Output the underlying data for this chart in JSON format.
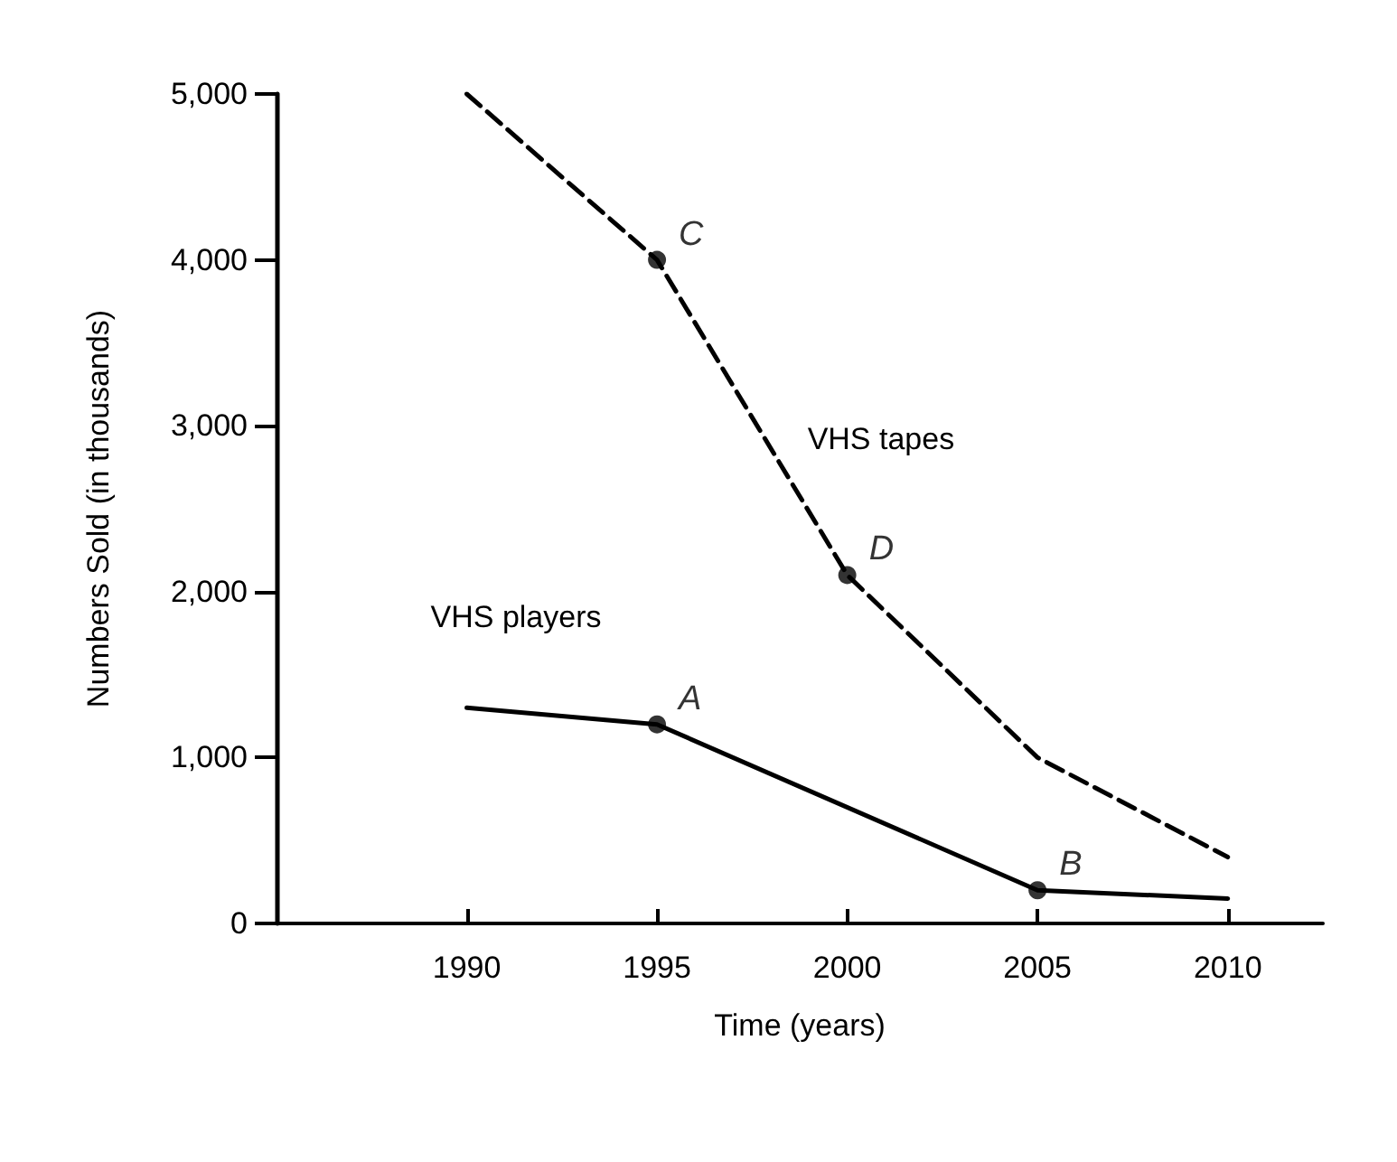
{
  "chart_data": {
    "type": "line",
    "xlabel": "Time (years)",
    "ylabel": "Numbers Sold (in thousands)",
    "series": [
      {
        "name": "VHS tapes",
        "color": "#000000",
        "line_style": "dashed",
        "x": [
          1990,
          1995,
          2000,
          2005,
          2010
        ],
        "values": [
          5000,
          4000,
          2100,
          1000,
          400
        ]
      },
      {
        "name": "VHS players",
        "color": "#000000",
        "line_style": "solid",
        "x": [
          1990,
          1995,
          2005,
          2010
        ],
        "values": [
          1300,
          1200,
          200,
          150
        ]
      }
    ],
    "xlim": [
      1985,
      2012.5
    ],
    "xticks": [
      1990,
      1995,
      2000,
      2005,
      2010
    ],
    "ylim": [
      0,
      5000
    ],
    "yticks": [
      0,
      {
        "value": 1000,
        "label": "1,000"
      },
      {
        "value": 2000,
        "label": "2,000"
      },
      {
        "value": 3000,
        "label": "3,000"
      },
      {
        "value": 4000,
        "label": "4,000"
      },
      {
        "value": 5000,
        "label": "5,000"
      }
    ],
    "annotations": [
      {
        "text": "A",
        "x": 1995,
        "y": 1200
      },
      {
        "text": "B",
        "x": 2005,
        "y": 200
      },
      {
        "text": "C",
        "x": 1995,
        "y": 4000
      },
      {
        "text": "D",
        "x": 2000,
        "y": 2100
      }
    ],
    "grid": false,
    "legend": false
  }
}
